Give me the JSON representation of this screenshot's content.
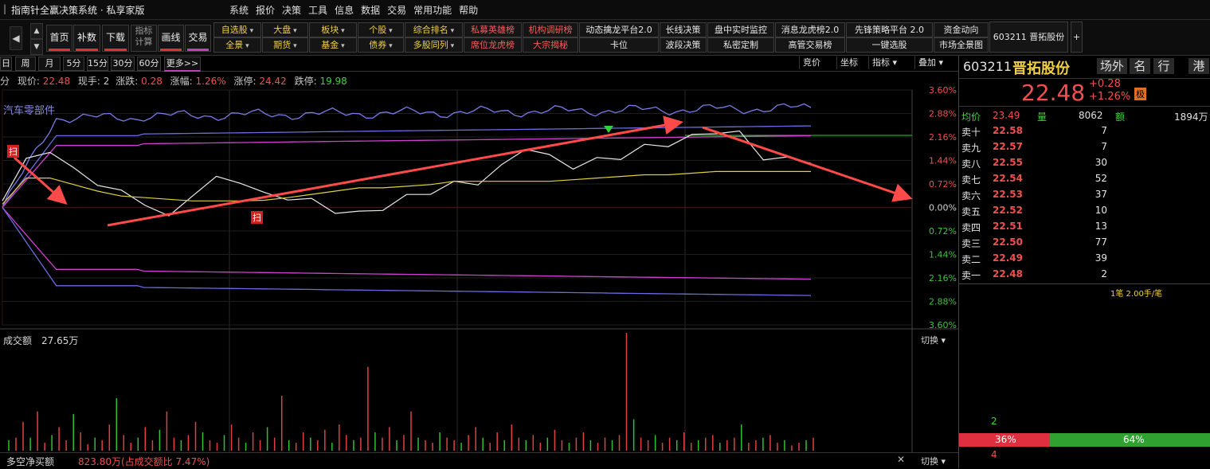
{
  "window": {
    "title": "指南针全赢决策系统 · 私享家版",
    "menu": [
      "系统",
      "报价",
      "决策",
      "工具",
      "信息",
      "数据",
      "交易",
      "常用功能",
      "帮助"
    ]
  },
  "toolbar": {
    "big_buttons": [
      "首页",
      "补数",
      "下载",
      "指标计算",
      "画线",
      "交易"
    ],
    "grid_row1": [
      "自选股",
      "大盘",
      "板块",
      "个股",
      "综合排名",
      "私募英雄榜",
      "机构调研榜",
      "动态擒龙平台2.0",
      "长线决策",
      "盘中实时监控",
      "消息龙虎榜2.0",
      "先锋策略平台 2.0",
      "资金动向"
    ],
    "grid_row2": [
      "全景",
      "期货",
      "基金",
      "债券",
      "多股同列",
      "席位龙虎榜",
      "大宗揭秘",
      "卡位",
      "波段决策",
      "私密定制",
      "高管交易榜",
      "一键选股",
      "市场全景图"
    ],
    "stock_tab": "603211  晋拓股份",
    "add_tab": "+"
  },
  "periods": {
    "items": [
      "日",
      "周",
      "月",
      "5分",
      "15分",
      "30分",
      "60分",
      "更多>>"
    ],
    "right": [
      "竞价",
      "坐标",
      "指标 ▾",
      "叠加 ▾"
    ]
  },
  "info": {
    "prefix": "分",
    "price_label": "现价:",
    "price": "22.48",
    "hand_label": "现手:",
    "hand": "2",
    "chg_label": "涨跌:",
    "chg": "0.28",
    "pct_label": "涨幅:",
    "pct": "1.26%",
    "up_label": "涨停:",
    "up": "24.42",
    "down_label": "跌停:",
    "down": "19.98"
  },
  "chart": {
    "overlay_label": "汽车零部件",
    "scan_marker": "扫",
    "price_axis": [
      "3.60%",
      "2.88%",
      "2.16%",
      "1.44%",
      "0.72%",
      "0.00%",
      "0.72%",
      "1.44%",
      "2.16%",
      "2.88%",
      "3.60%"
    ],
    "volume_label": "成交额",
    "volume_value": "27.65万",
    "switch_label": "切换 ▾",
    "net_label": "多空净买额",
    "net_value": "823.80万(占成交额比 7.47%)"
  },
  "chart_data": {
    "type": "line",
    "title": "",
    "ylim_pct": [
      -3.6,
      3.6
    ],
    "series": [
      {
        "values": [
          0.2,
          1.5,
          1.7,
          1.2,
          0.7,
          0.5,
          0.1,
          -0.3,
          0.4,
          0.9,
          0.8,
          0.4,
          0.3,
          0.2,
          -0.1,
          -0.2,
          0.0,
          0.3,
          0.5,
          0.7,
          0.8,
          1.2,
          1.9,
          1.5,
          1.3,
          1.4,
          1.6,
          1.8,
          2.0,
          2.1,
          2.4,
          2.2,
          1.6,
          1.4,
          1.5
        ]
      },
      {
        "values": [
          0.1,
          0.9,
          0.9,
          0.7,
          0.5,
          0.35,
          0.3,
          0.25,
          0.2,
          0.2,
          0.2,
          0.22,
          0.3,
          0.4,
          0.5,
          0.6,
          0.6,
          0.65,
          0.7,
          0.8,
          0.8,
          0.8,
          0.8,
          0.8,
          0.85,
          0.9,
          0.95,
          1.0,
          1.0,
          1.05,
          1.1,
          1.1,
          1.1,
          1.1,
          1.1
        ]
      }
    ],
    "volume": [
      8,
      10,
      22,
      10,
      30,
      6,
      12,
      18,
      8,
      28,
      14,
      5,
      10,
      8,
      20,
      40,
      12,
      6,
      10,
      18,
      8,
      16,
      30,
      10,
      8,
      12,
      22,
      14,
      8,
      6,
      12,
      20,
      10,
      6,
      14,
      8,
      18,
      10,
      42,
      8,
      6,
      14,
      10,
      8,
      16,
      6,
      20,
      12,
      8,
      10,
      64,
      14,
      10,
      18,
      8,
      12,
      30,
      10,
      8,
      6,
      14,
      10,
      8,
      6,
      12,
      18,
      10,
      6,
      14,
      8,
      20,
      10,
      8,
      12,
      6,
      10,
      16,
      8,
      6,
      10,
      14,
      8,
      6,
      10,
      8,
      12,
      90,
      24,
      10,
      8,
      12,
      6,
      10,
      8,
      14,
      6,
      8,
      10,
      12,
      6,
      8,
      10,
      20,
      6,
      8,
      10,
      12,
      6,
      8,
      4,
      6,
      8,
      10
    ]
  },
  "quote": {
    "code": "603211",
    "name": "晋拓股份",
    "tags": [
      "场外",
      "名",
      "行",
      "港"
    ],
    "price": "22.48",
    "chg": "+0.28",
    "pct": "+1.26%",
    "badge": "极",
    "avg_label": "均价",
    "avg": "23.49",
    "vol_label": "量",
    "vol": "8062",
    "amt_label": "额",
    "amt": "1894万",
    "orders": [
      {
        "name": "卖十",
        "price": "22.58",
        "vol": "7"
      },
      {
        "name": "卖九",
        "price": "22.57",
        "vol": "7"
      },
      {
        "name": "卖八",
        "price": "22.55",
        "vol": "30"
      },
      {
        "name": "卖七",
        "price": "22.54",
        "vol": "52"
      },
      {
        "name": "卖六",
        "price": "22.53",
        "vol": "37"
      },
      {
        "name": "卖五",
        "price": "22.52",
        "vol": "10"
      },
      {
        "name": "卖四",
        "price": "22.51",
        "vol": "13"
      },
      {
        "name": "卖三",
        "price": "22.50",
        "vol": "77"
      },
      {
        "name": "卖二",
        "price": "22.49",
        "vol": "39"
      },
      {
        "name": "卖一",
        "price": "22.48",
        "vol": "2"
      }
    ],
    "trade_note": "1笔 2.00手/笔",
    "buy_count": "2",
    "sell_count": "4",
    "red_pct_label": "36%",
    "green_pct_label": "64%",
    "red_pct": 36,
    "colors": {
      "up": "#f05050",
      "down": "#30c030",
      "accent": "#f0d040"
    }
  }
}
